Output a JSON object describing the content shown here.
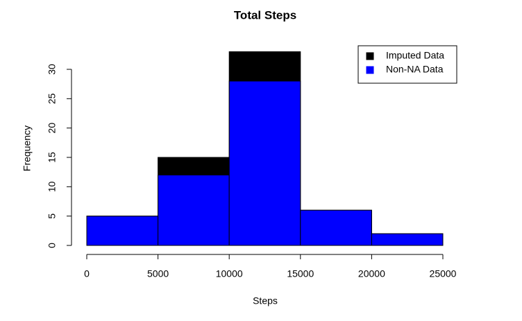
{
  "chart_data": {
    "type": "histogram",
    "title": "Total Steps",
    "x_label": "Steps",
    "y_label": "Frequency",
    "bins": [
      0,
      5000,
      10000,
      15000,
      20000,
      25000
    ],
    "series": [
      {
        "name": "Imputed Data",
        "color": "#000000",
        "values": [
          5,
          15,
          33,
          6,
          2
        ]
      },
      {
        "name": "Non-NA Data",
        "color": "#0000ff",
        "values": [
          5,
          12,
          28,
          6,
          2
        ]
      }
    ],
    "xlim": [
      0,
      25000
    ],
    "xticks": [
      0,
      5000,
      10000,
      15000,
      20000,
      25000
    ],
    "ylim": [
      0,
      33
    ],
    "yticks": [
      0,
      5,
      10,
      15,
      20,
      25,
      30
    ],
    "legend": "topright"
  }
}
